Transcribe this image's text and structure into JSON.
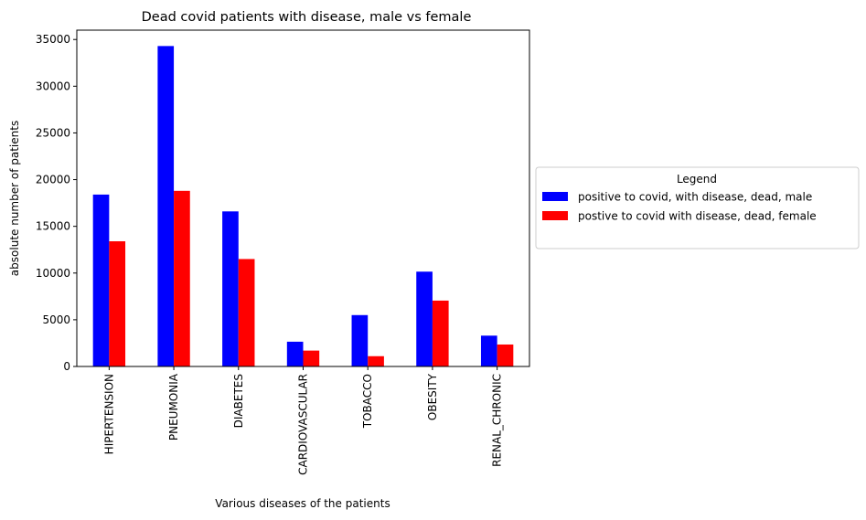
{
  "chart_data": {
    "type": "bar",
    "title": "Dead covid patients with disease, male vs female",
    "xlabel": "Various diseases of the patients",
    "ylabel": "absolute number of patients",
    "categories": [
      "HIPERTENSION",
      "PNEUMONIA",
      "DIABETES",
      "CARDIOVASCULAR",
      "TOBACCO",
      "OBESITY",
      "RENAL_CHRONIC"
    ],
    "series": [
      {
        "name": "positive to covid, with disease, dead, male",
        "color": "#0000ff",
        "values": [
          18400,
          34300,
          16600,
          2650,
          5500,
          10150,
          3300
        ]
      },
      {
        "name": "postive to covid with disease, dead, female",
        "color": "#ff0000",
        "values": [
          13400,
          18800,
          11500,
          1700,
          1100,
          7050,
          2350
        ]
      }
    ],
    "ylim": [
      0,
      36000
    ],
    "yticks": [
      0,
      5000,
      10000,
      15000,
      20000,
      25000,
      30000,
      35000
    ],
    "ytick_labels": [
      "0",
      "5000",
      "10000",
      "15000",
      "20000",
      "25000",
      "30000",
      "35000"
    ],
    "grid": false,
    "legend": {
      "title": "Legend",
      "placement": "outside-right"
    }
  }
}
